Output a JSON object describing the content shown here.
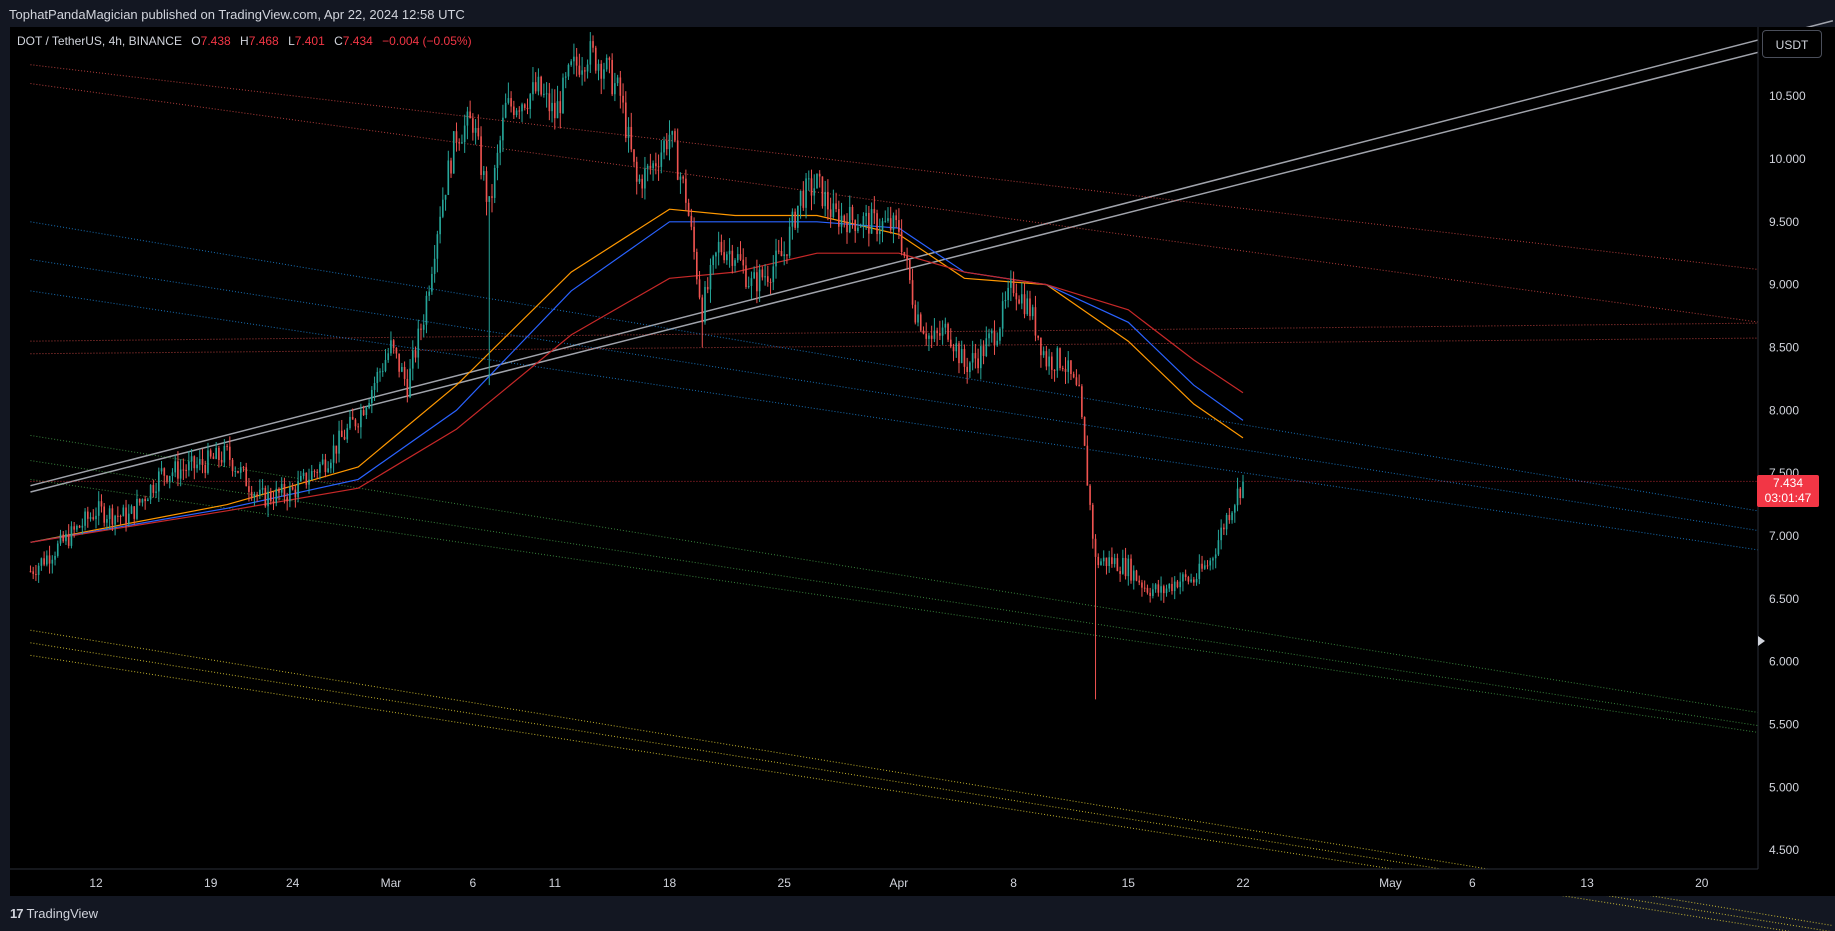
{
  "header": {
    "published_text": "TophatPandaMagician published on TradingView.com, Apr 22, 2024 12:58 UTC"
  },
  "legend": {
    "symbol": "DOT / TetherUS, 4h, BINANCE",
    "o_label": "O",
    "o_value": "7.438",
    "h_label": "H",
    "h_value": "7.468",
    "l_label": "L",
    "l_value": "7.401",
    "c_label": "C",
    "c_value": "7.434",
    "change": "−0.004 (−0.05%)"
  },
  "currency_button": "USDT",
  "price_badge": {
    "price": "7.434",
    "countdown": "03:01:47"
  },
  "footer": {
    "logo_mark": "17",
    "logo_text": "TradingView"
  },
  "colors": {
    "background": "#000000",
    "chrome": "#131722",
    "up": "#26a69a",
    "down": "#ef5350",
    "wick_up": "#5d7f7a",
    "ma_orange": "#ff9800",
    "ma_blue": "#2962ff",
    "ma_red": "#c62828",
    "trend_white": "#9598a1",
    "price_line": "#f23645"
  },
  "chart_data": {
    "type": "candlestick",
    "symbol": "DOT / TetherUS",
    "interval": "4h",
    "exchange": "BINANCE",
    "y_ticks": [
      "10.500",
      "10.000",
      "9.500",
      "9.000",
      "8.500",
      "8.000",
      "7.500",
      "7.000",
      "6.500",
      "6.000",
      "5.500",
      "5.000",
      "4.500"
    ],
    "ylim": [
      4.35,
      11.05
    ],
    "x_ticks": [
      "12",
      "19",
      "24",
      "Mar",
      "6",
      "11",
      "18",
      "25",
      "Apr",
      "8",
      "15",
      "22",
      "May",
      "6",
      "13",
      "20"
    ],
    "x_tick_dates": [
      "2024-02-12",
      "2024-02-19",
      "2024-02-24",
      "2024-03-01",
      "2024-03-06",
      "2024-03-11",
      "2024-03-18",
      "2024-03-25",
      "2024-04-01",
      "2024-04-08",
      "2024-04-15",
      "2024-04-22",
      "2024-05-01",
      "2024-05-06",
      "2024-05-13",
      "2024-05-20"
    ],
    "price_path": [
      [
        "2024-02-08",
        6.72
      ],
      [
        "2024-02-10",
        6.95
      ],
      [
        "2024-02-12",
        7.2
      ],
      [
        "2024-02-14",
        7.15
      ],
      [
        "2024-02-16",
        7.5
      ],
      [
        "2024-02-18",
        7.55
      ],
      [
        "2024-02-20",
        7.65
      ],
      [
        "2024-02-22",
        7.3
      ],
      [
        "2024-02-24",
        7.35
      ],
      [
        "2024-02-26",
        7.6
      ],
      [
        "2024-02-28",
        7.95
      ],
      [
        "2024-03-01",
        8.5
      ],
      [
        "2024-03-02",
        8.2
      ],
      [
        "2024-03-03",
        8.75
      ],
      [
        "2024-03-04",
        9.6
      ],
      [
        "2024-03-05",
        10.2
      ],
      [
        "2024-03-06",
        10.3
      ],
      [
        "2024-03-07",
        9.6
      ],
      [
        "2024-03-08",
        10.4
      ],
      [
        "2024-03-10",
        10.55
      ],
      [
        "2024-03-11",
        10.35
      ],
      [
        "2024-03-12",
        10.7
      ],
      [
        "2024-03-13",
        10.85
      ],
      [
        "2024-03-14",
        10.75
      ],
      [
        "2024-03-15",
        10.5
      ],
      [
        "2024-03-16",
        9.8
      ],
      [
        "2024-03-17",
        9.95
      ],
      [
        "2024-03-18",
        10.2
      ],
      [
        "2024-03-19",
        9.7
      ],
      [
        "2024-03-20",
        8.8
      ],
      [
        "2024-03-21",
        9.3
      ],
      [
        "2024-03-22",
        9.25
      ],
      [
        "2024-03-23",
        9.0
      ],
      [
        "2024-03-24",
        9.1
      ],
      [
        "2024-03-25",
        9.25
      ],
      [
        "2024-03-26",
        9.7
      ],
      [
        "2024-03-27",
        9.8
      ],
      [
        "2024-03-28",
        9.55
      ],
      [
        "2024-03-30",
        9.5
      ],
      [
        "2024-04-01",
        9.45
      ],
      [
        "2024-04-02",
        8.8
      ],
      [
        "2024-04-03",
        8.55
      ],
      [
        "2024-04-04",
        8.65
      ],
      [
        "2024-04-05",
        8.35
      ],
      [
        "2024-04-06",
        8.45
      ],
      [
        "2024-04-07",
        8.65
      ],
      [
        "2024-04-08",
        9.0
      ],
      [
        "2024-04-09",
        8.8
      ],
      [
        "2024-04-10",
        8.4
      ],
      [
        "2024-04-11",
        8.4
      ],
      [
        "2024-04-12",
        8.1
      ],
      [
        "2024-04-13",
        6.8
      ],
      [
        "2024-04-14",
        6.8
      ],
      [
        "2024-04-15",
        6.75
      ],
      [
        "2024-04-16",
        6.6
      ],
      [
        "2024-04-17",
        6.55
      ],
      [
        "2024-04-18",
        6.65
      ],
      [
        "2024-04-19",
        6.65
      ],
      [
        "2024-04-20",
        6.8
      ],
      [
        "2024-04-21",
        7.15
      ],
      [
        "2024-04-22",
        7.434
      ]
    ],
    "extreme_wicks": [
      [
        "2024-04-13",
        5.7
      ],
      [
        "2024-03-07",
        8.2
      ],
      [
        "2024-03-20",
        8.5
      ]
    ],
    "moving_averages": [
      {
        "color": "#ff9800",
        "points": [
          [
            "2024-02-08",
            6.95
          ],
          [
            "2024-02-20",
            7.25
          ],
          [
            "2024-02-28",
            7.55
          ],
          [
            "2024-03-05",
            8.2
          ],
          [
            "2024-03-12",
            9.1
          ],
          [
            "2024-03-18",
            9.6
          ],
          [
            "2024-03-22",
            9.55
          ],
          [
            "2024-03-27",
            9.55
          ],
          [
            "2024-04-01",
            9.4
          ],
          [
            "2024-04-05",
            9.05
          ],
          [
            "2024-04-10",
            9.0
          ],
          [
            "2024-04-15",
            8.55
          ],
          [
            "2024-04-19",
            8.05
          ],
          [
            "2024-04-22",
            7.78
          ]
        ]
      },
      {
        "color": "#2962ff",
        "points": [
          [
            "2024-02-08",
            6.95
          ],
          [
            "2024-02-20",
            7.22
          ],
          [
            "2024-02-28",
            7.45
          ],
          [
            "2024-03-05",
            8.0
          ],
          [
            "2024-03-12",
            8.95
          ],
          [
            "2024-03-18",
            9.5
          ],
          [
            "2024-03-22",
            9.5
          ],
          [
            "2024-03-27",
            9.5
          ],
          [
            "2024-04-01",
            9.45
          ],
          [
            "2024-04-05",
            9.1
          ],
          [
            "2024-04-10",
            9.0
          ],
          [
            "2024-04-15",
            8.7
          ],
          [
            "2024-04-19",
            8.2
          ],
          [
            "2024-04-22",
            7.92
          ]
        ]
      },
      {
        "color": "#c62828",
        "points": [
          [
            "2024-02-08",
            6.95
          ],
          [
            "2024-02-20",
            7.2
          ],
          [
            "2024-02-28",
            7.38
          ],
          [
            "2024-03-05",
            7.85
          ],
          [
            "2024-03-12",
            8.6
          ],
          [
            "2024-03-18",
            9.05
          ],
          [
            "2024-03-22",
            9.1
          ],
          [
            "2024-03-27",
            9.25
          ],
          [
            "2024-04-01",
            9.25
          ],
          [
            "2024-04-05",
            9.1
          ],
          [
            "2024-04-10",
            9.0
          ],
          [
            "2024-04-15",
            8.8
          ],
          [
            "2024-04-19",
            8.4
          ],
          [
            "2024-04-22",
            8.14
          ]
        ]
      }
    ],
    "trend_lines": [
      {
        "color": "#b2b5be",
        "style": "solid",
        "from": [
          "2024-02-08",
          7.35
        ],
        "to": [
          "2024-05-28",
          11.0
        ]
      },
      {
        "color": "#b2b5be",
        "style": "solid",
        "from": [
          "2024-02-08",
          7.4
        ],
        "to": [
          "2024-05-28",
          11.1
        ]
      },
      {
        "color": "#ef5350",
        "style": "dotted",
        "from": [
          "2024-02-08",
          10.75
        ],
        "to": [
          "2024-05-28",
          9.05
        ]
      },
      {
        "color": "#ef5350",
        "style": "dotted",
        "from": [
          "2024-02-08",
          10.6
        ],
        "to": [
          "2024-05-28",
          8.62
        ]
      },
      {
        "color": "#ef5350",
        "style": "dotted",
        "from": [
          "2024-02-08",
          8.55
        ],
        "to": [
          "2024-05-28",
          8.7
        ]
      },
      {
        "color": "#ef5350",
        "style": "dotted",
        "from": [
          "2024-02-08",
          8.45
        ],
        "to": [
          "2024-05-28",
          8.58
        ]
      },
      {
        "color": "#2196f3",
        "style": "dotted",
        "from": [
          "2024-02-08",
          9.5
        ],
        "to": [
          "2024-05-28",
          7.1
        ]
      },
      {
        "color": "#2196f3",
        "style": "dotted",
        "from": [
          "2024-02-08",
          9.2
        ],
        "to": [
          "2024-05-28",
          6.95
        ]
      },
      {
        "color": "#2196f3",
        "style": "dotted",
        "from": [
          "2024-02-08",
          8.95
        ],
        "to": [
          "2024-05-28",
          6.8
        ]
      },
      {
        "color": "#4caf50",
        "style": "dotted",
        "from": [
          "2024-02-08",
          7.8
        ],
        "to": [
          "2024-05-28",
          5.5
        ]
      },
      {
        "color": "#4caf50",
        "style": "dotted",
        "from": [
          "2024-02-08",
          7.6
        ],
        "to": [
          "2024-05-28",
          5.4
        ]
      },
      {
        "color": "#4caf50",
        "style": "dotted",
        "from": [
          "2024-02-08",
          7.45
        ],
        "to": [
          "2024-05-28",
          5.35
        ]
      },
      {
        "color": "#ffeb3b",
        "style": "dotted",
        "from": [
          "2024-02-08",
          6.25
        ],
        "to": [
          "2024-05-28",
          3.9
        ]
      },
      {
        "color": "#ffeb3b",
        "style": "dotted",
        "from": [
          "2024-02-08",
          6.15
        ],
        "to": [
          "2024-05-28",
          3.85
        ]
      },
      {
        "color": "#ffeb3b",
        "style": "dotted",
        "from": [
          "2024-02-08",
          6.05
        ],
        "to": [
          "2024-05-28",
          3.8
        ]
      },
      {
        "color": "#f23645",
        "style": "dotted",
        "from": [
          "2024-02-08",
          7.434
        ],
        "to": [
          "2024-05-28",
          7.434
        ]
      }
    ],
    "last_price": 7.434
  }
}
